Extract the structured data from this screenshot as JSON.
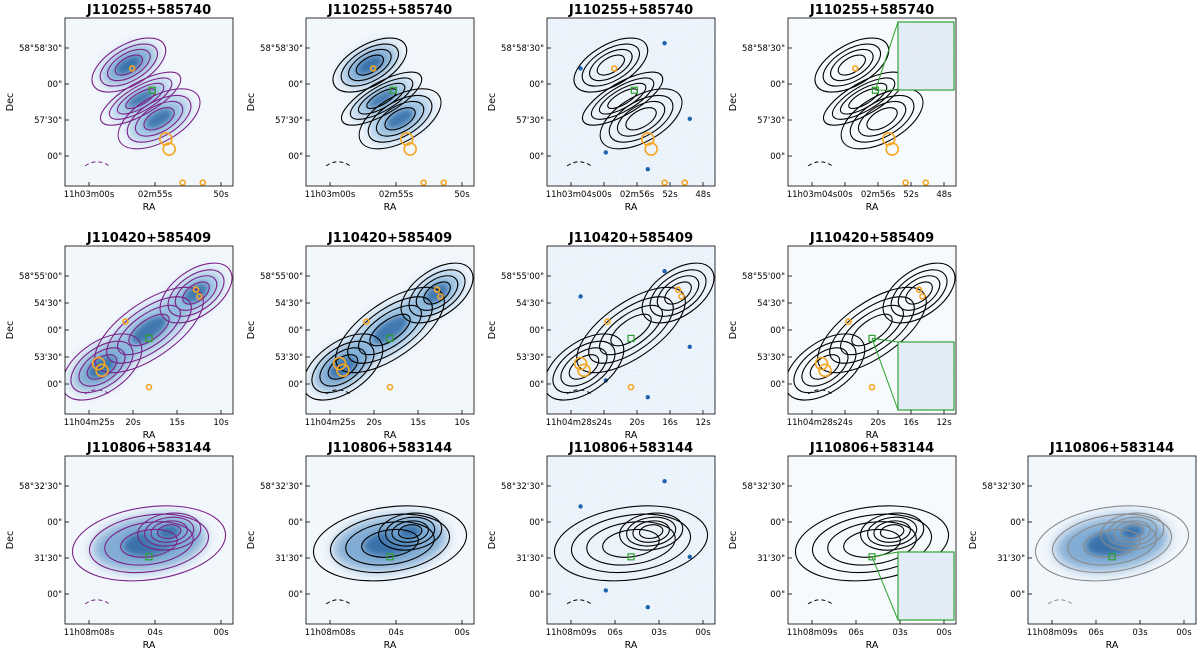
{
  "figure": {
    "axis_x_label": "RA",
    "axis_y_label": "Dec"
  },
  "chart_data": [
    {
      "type": "heatmap",
      "row": 0,
      "col": 0,
      "title": "J110255+585740",
      "xlabel": "RA",
      "ylabel": "Dec",
      "x_ticks": [
        "11h03m00s",
        "02m55s",
        "50s"
      ],
      "y_ticks": [
        "58°58'30\"",
        "00\"",
        "57'30\"",
        "00\""
      ],
      "background": "radio-blue",
      "contours": "purple",
      "extra": "orange",
      "inset": false
    },
    {
      "type": "heatmap",
      "row": 0,
      "col": 1,
      "title": "J110255+585740",
      "xlabel": "RA",
      "ylabel": "Dec",
      "x_ticks": [
        "11h03m00s",
        "02m55s",
        "50s"
      ],
      "y_ticks": [
        "58°58'30\"",
        "00\"",
        "57'30\"",
        "00\""
      ],
      "background": "radio-blue",
      "contours": "black",
      "extra": "orange",
      "inset": false
    },
    {
      "type": "heatmap",
      "row": 0,
      "col": 2,
      "title": "J110255+585740",
      "xlabel": "RA",
      "ylabel": "Dec",
      "x_ticks": [
        "11h03m04s",
        "00s",
        "02m56s",
        "52s",
        "48s"
      ],
      "y_ticks": [
        "58°58'30\"",
        "00\"",
        "57'30\"",
        "00\""
      ],
      "background": "optical-speckle",
      "contours": "black",
      "extra": "orange",
      "inset": false
    },
    {
      "type": "heatmap",
      "row": 0,
      "col": 3,
      "title": "J110255+585740",
      "xlabel": "RA",
      "ylabel": "Dec",
      "x_ticks": [
        "11h03m04s",
        "00s",
        "02m56s",
        "52s",
        "48s"
      ],
      "y_ticks": [
        "58°58'30\"",
        "00\"",
        "57'30\"",
        "00\""
      ],
      "background": "plain",
      "contours": "black",
      "extra": "orange",
      "inset": "top-right"
    },
    {
      "type": "heatmap",
      "row": 1,
      "col": 0,
      "title": "J110420+585409",
      "xlabel": "RA",
      "ylabel": "Dec",
      "x_ticks": [
        "11h04m25s",
        "20s",
        "15s",
        "10s"
      ],
      "y_ticks": [
        "58°55'00\"",
        "54'30\"",
        "00\"",
        "53'30\"",
        "00\""
      ],
      "background": "radio-blue",
      "contours": "purple",
      "extra": "orange",
      "inset": false
    },
    {
      "type": "heatmap",
      "row": 1,
      "col": 1,
      "title": "J110420+585409",
      "xlabel": "RA",
      "ylabel": "Dec",
      "x_ticks": [
        "11h04m25s",
        "20s",
        "15s",
        "10s"
      ],
      "y_ticks": [
        "58°55'00\"",
        "54'30\"",
        "00\"",
        "53'30\"",
        "00\""
      ],
      "background": "radio-blue",
      "contours": "black",
      "extra": "orange",
      "inset": false
    },
    {
      "type": "heatmap",
      "row": 1,
      "col": 2,
      "title": "J110420+585409",
      "xlabel": "RA",
      "ylabel": "Dec",
      "x_ticks": [
        "11h04m28s",
        "24s",
        "20s",
        "16s",
        "12s"
      ],
      "y_ticks": [
        "58°55'00\"",
        "54'30\"",
        "00\"",
        "53'30\"",
        "00\""
      ],
      "background": "optical-speckle",
      "contours": "black",
      "extra": "orange",
      "inset": false
    },
    {
      "type": "heatmap",
      "row": 1,
      "col": 3,
      "title": "J110420+585409",
      "xlabel": "RA",
      "ylabel": "Dec",
      "x_ticks": [
        "11h04m28s",
        "24s",
        "20s",
        "16s",
        "12s"
      ],
      "y_ticks": [
        "58°55'00\"",
        "54'30\"",
        "00\"",
        "53'30\"",
        "00\""
      ],
      "background": "plain",
      "contours": "black",
      "extra": "orange",
      "inset": "bottom-right"
    },
    {
      "type": "heatmap",
      "row": 2,
      "col": 0,
      "title": "J110806+583144",
      "xlabel": "RA",
      "ylabel": "Dec",
      "x_ticks": [
        "11h08m08s",
        "04s",
        "00s"
      ],
      "y_ticks": [
        "58°32'30\"",
        "00\"",
        "31'30\"",
        "00\""
      ],
      "background": "radio-blue",
      "contours": "purple",
      "extra": "none",
      "inset": false
    },
    {
      "type": "heatmap",
      "row": 2,
      "col": 1,
      "title": "J110806+583144",
      "xlabel": "RA",
      "ylabel": "Dec",
      "x_ticks": [
        "11h08m08s",
        "04s",
        "00s"
      ],
      "y_ticks": [
        "58°32'30\"",
        "00\"",
        "31'30\"",
        "00\""
      ],
      "background": "radio-blue",
      "contours": "black",
      "extra": "none",
      "inset": false
    },
    {
      "type": "heatmap",
      "row": 2,
      "col": 2,
      "title": "J110806+583144",
      "xlabel": "RA",
      "ylabel": "Dec",
      "x_ticks": [
        "11h08m09s",
        "06s",
        "03s",
        "00s"
      ],
      "y_ticks": [
        "58°32'30\"",
        "00\"",
        "31'30\"",
        "00\""
      ],
      "background": "optical-speckle",
      "contours": "black",
      "extra": "none",
      "inset": false
    },
    {
      "type": "heatmap",
      "row": 2,
      "col": 3,
      "title": "J110806+583144",
      "xlabel": "RA",
      "ylabel": "Dec",
      "x_ticks": [
        "11h08m09s",
        "06s",
        "03s",
        "00s"
      ],
      "y_ticks": [
        "58°32'30\"",
        "00\"",
        "31'30\"",
        "00\""
      ],
      "background": "plain",
      "contours": "black",
      "extra": "none",
      "inset": "bottom-right"
    },
    {
      "type": "heatmap",
      "row": 2,
      "col": 4,
      "title": "J110806+583144",
      "xlabel": "RA",
      "ylabel": "Dec",
      "x_ticks": [
        "11h08m09s",
        "06s",
        "03s",
        "00s"
      ],
      "y_ticks": [
        "58°32'30\"",
        "00\"",
        "31'30\"",
        "00\""
      ],
      "background": "radio-blue",
      "contours": "gray",
      "extra": "none",
      "inset": false
    }
  ],
  "colors": {
    "contour_black": "#000000",
    "contour_purple": "#7b2287",
    "contour_gray": "#8a8a8a",
    "orange": "#f5a623",
    "marker_green": "#2ca02c",
    "bg_light": "#f2f7fc"
  }
}
